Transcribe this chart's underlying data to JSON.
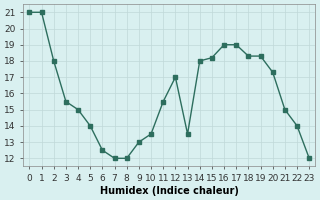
{
  "x": [
    0,
    1,
    2,
    3,
    4,
    5,
    6,
    7,
    8,
    9,
    10,
    11,
    12,
    13,
    14,
    15,
    16,
    17,
    18,
    19,
    20,
    21,
    22,
    23
  ],
  "y": [
    21,
    21,
    18,
    15.5,
    15,
    14,
    12.5,
    12,
    12,
    13,
    13.5,
    15.5,
    17,
    13.5,
    18,
    18.2,
    19,
    19,
    18.3,
    18.3,
    17.3,
    15,
    14,
    12
  ],
  "xlabel": "Humidex (Indice chaleur)",
  "xlim": [
    -0.5,
    23.5
  ],
  "ylim": [
    11.5,
    21.5
  ],
  "yticks": [
    12,
    13,
    14,
    15,
    16,
    17,
    18,
    19,
    20,
    21
  ],
  "xticks": [
    0,
    1,
    2,
    3,
    4,
    5,
    6,
    7,
    8,
    9,
    10,
    11,
    12,
    13,
    14,
    15,
    16,
    17,
    18,
    19,
    20,
    21,
    22,
    23
  ],
  "line_color": "#2d6e5e",
  "marker_color": "#2d6e5e",
  "bg_color": "#d9f0f0",
  "grid_color": "#c0d8d8",
  "label_fontsize": 7,
  "tick_fontsize": 6.5
}
